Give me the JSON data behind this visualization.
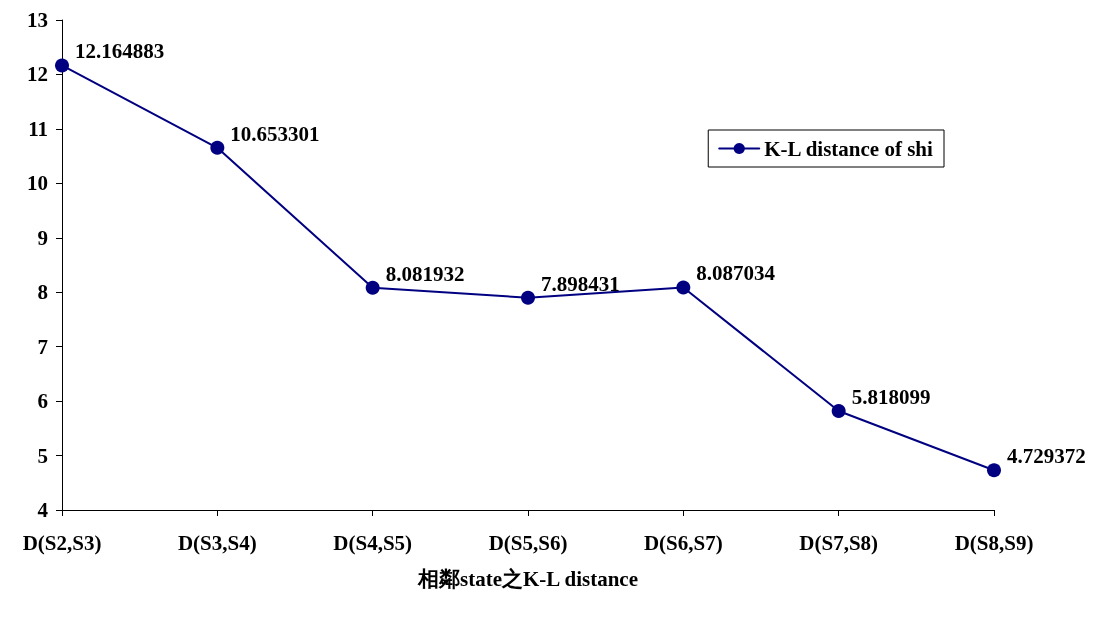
{
  "chart_data": {
    "type": "line",
    "xlabel": "相鄰state之K-L distance",
    "categories": [
      "D(S2,S3)",
      "D(S3,S4)",
      "D(S4,S5)",
      "D(S5,S6)",
      "D(S6,S7)",
      "D(S7,S8)",
      "D(S8,S9)"
    ],
    "series": [
      {
        "name": "K-L distance of shi",
        "color": "#000080",
        "values": [
          12.164883,
          10.653301,
          8.081932,
          7.898431,
          8.087034,
          5.818099,
          4.729372
        ]
      }
    ],
    "ylim": [
      4,
      13
    ],
    "yticks": [
      4,
      5,
      6,
      7,
      8,
      9,
      10,
      11,
      12,
      13
    ],
    "grid": false,
    "legend": "top right",
    "marker": "circle",
    "line_style": "solid",
    "data_labels": true
  }
}
